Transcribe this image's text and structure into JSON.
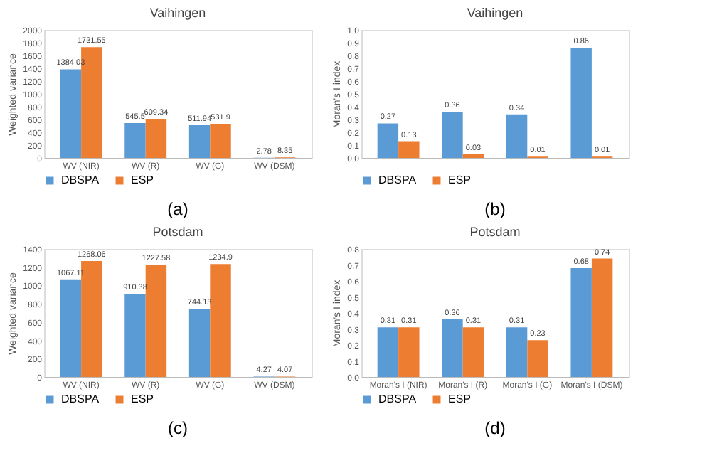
{
  "chart_data": [
    {
      "type": "bar",
      "title": "Vaihingen",
      "ylabel": "Weighted variance",
      "categories": [
        "WV (NIR)",
        "WV (R)",
        "WV (G)",
        "WV (DSM)"
      ],
      "series": [
        {
          "name": "DBSPA",
          "color": "#5b9bd5",
          "values": [
            1384.03,
            545.5,
            511.94,
            2.78
          ]
        },
        {
          "name": "ESP",
          "color": "#ed7d31",
          "values": [
            1731.55,
            609.34,
            531.9,
            8.35
          ]
        }
      ],
      "ylim": [
        0,
        2000
      ],
      "yticks": [
        0,
        200,
        400,
        600,
        800,
        1000,
        1200,
        1400,
        1600,
        1800,
        2000
      ],
      "data_labels": true,
      "grid": false,
      "legend": "bottom",
      "annotations": [
        "(a)"
      ]
    },
    {
      "type": "bar",
      "title": "Vaihingen",
      "ylabel": "Moran's I index",
      "categories": [
        null,
        null,
        null,
        null
      ],
      "series": [
        {
          "name": "DBSPA",
          "color": "#5b9bd5",
          "values": [
            0.27,
            0.36,
            0.34,
            0.86
          ]
        },
        {
          "name": "ESP",
          "color": "#ed7d31",
          "values": [
            0.13,
            0.03,
            0.01,
            0.01
          ]
        }
      ],
      "ylim": [
        0,
        1
      ],
      "yticks": [
        {
          "value": 0,
          "label": "0.0"
        },
        0.1,
        0.2,
        0.3,
        0.4,
        0.5,
        0.6,
        0.7,
        0.8,
        0.9,
        {
          "value": 1,
          "label": "1.0"
        }
      ],
      "data_labels": true,
      "grid": false,
      "legend": "bottom",
      "annotations": [
        "(b)"
      ]
    },
    {
      "type": "bar",
      "title": "Potsdam",
      "ylabel": "Weighted variance",
      "categories": [
        "WV (NIR)",
        "WV (R)",
        "WV (G)",
        "WV (DSM)"
      ],
      "series": [
        {
          "name": "DBSPA",
          "color": "#5b9bd5",
          "values": [
            1067.11,
            910.38,
            744.13,
            4.27
          ]
        },
        {
          "name": "ESP",
          "color": "#ed7d31",
          "values": [
            1268.06,
            1227.58,
            1234.9,
            4.07
          ]
        }
      ],
      "ylim": [
        0,
        1400
      ],
      "yticks": [
        0,
        200,
        400,
        600,
        800,
        1000,
        1200,
        1400
      ],
      "data_labels": true,
      "grid": false,
      "legend": "bottom",
      "annotations": [
        "(c)"
      ]
    },
    {
      "type": "bar",
      "title": "Potsdam",
      "ylabel": "Moran's I index",
      "categories": [
        "Moran's I (NIR)",
        "Moran's I (R)",
        "Moran's I (G)",
        "Moran's I (DSM)"
      ],
      "series": [
        {
          "name": "DBSPA",
          "color": "#5b9bd5",
          "values": [
            0.31,
            0.36,
            0.31,
            0.68
          ]
        },
        {
          "name": "ESP",
          "color": "#ed7d31",
          "values": [
            0.31,
            0.31,
            0.23,
            0.74
          ]
        }
      ],
      "ylim": [
        0,
        0.8
      ],
      "yticks": [
        {
          "value": 0,
          "label": "0.0"
        },
        0.1,
        0.2,
        0.3,
        0.4,
        0.5,
        0.6,
        0.7,
        0.8
      ],
      "data_labels": true,
      "grid": false,
      "legend": "bottom",
      "annotations": [
        "(d)"
      ]
    }
  ]
}
